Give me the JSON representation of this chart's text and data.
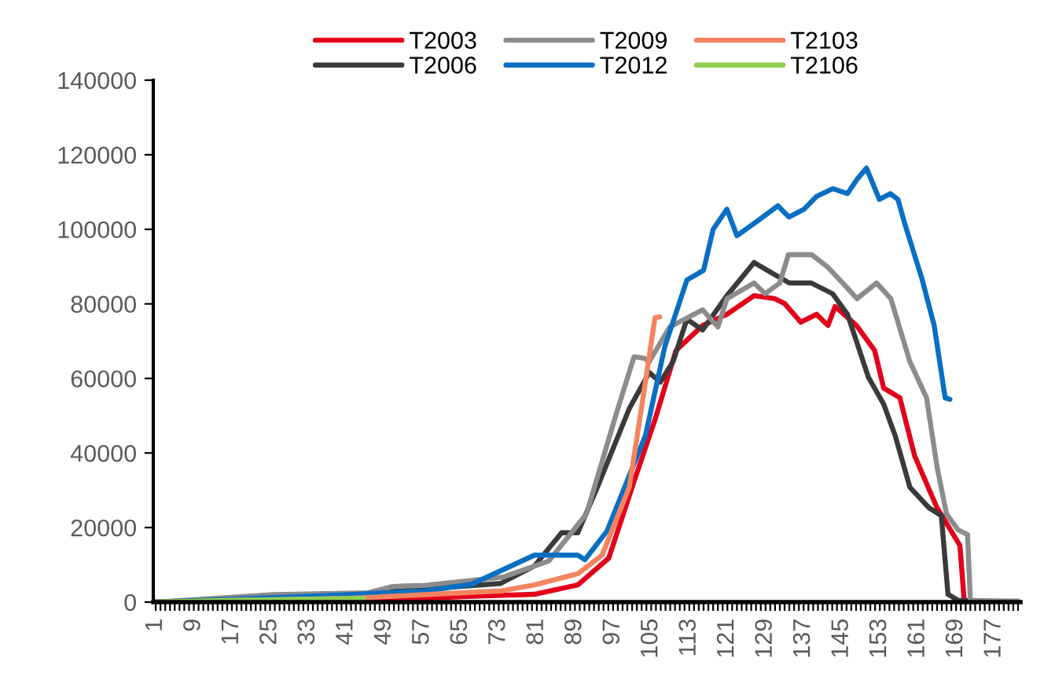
{
  "chart_data": {
    "type": "line",
    "xlim": [
      0.5,
      182.5
    ],
    "xticks": [
      1,
      9,
      17,
      25,
      33,
      41,
      49,
      57,
      65,
      73,
      81,
      89,
      97,
      105,
      113,
      121,
      129,
      137,
      145,
      153,
      161,
      169,
      177
    ],
    "ylim": [
      0,
      140000
    ],
    "yticks": [
      0,
      20000,
      40000,
      60000,
      80000,
      100000,
      120000,
      140000
    ],
    "grid": false,
    "legend": "top",
    "marker": "none",
    "line_style": "solid",
    "series": [
      {
        "name": "T2003",
        "color": "#e3001b",
        "x": [
          1,
          25.7,
          50,
          66.3,
          80.5,
          89.6,
          96.1,
          101.3,
          105.8,
          110.2,
          115.8,
          120.9,
          126.6,
          130.9,
          133,
          136.4,
          139.7,
          142.1,
          143.6,
          148.1,
          151.9,
          153.8,
          157.2,
          160.3,
          165,
          169.8,
          170.7,
          182
        ],
        "values": [
          0,
          300,
          600,
          1500,
          2100,
          4600,
          11800,
          32000,
          48900,
          67500,
          74200,
          77200,
          82200,
          81400,
          80100,
          75100,
          77200,
          74200,
          79300,
          74200,
          67500,
          57400,
          54800,
          39200,
          25300,
          15200,
          400,
          0
        ]
      },
      {
        "name": "T2006",
        "color": "#3a3a3a",
        "x": [
          1,
          25.7,
          41.9,
          57.6,
          73.4,
          80.5,
          86.2,
          89.6,
          93.7,
          100.4,
          104.6,
          106.9,
          109.6,
          112.5,
          115.8,
          120.9,
          126.6,
          129.9,
          134,
          138.6,
          143.1,
          146.2,
          150.6,
          153.8,
          156.2,
          159.3,
          163.3,
          165.9,
          167.3,
          169.4,
          182
        ],
        "values": [
          0,
          1500,
          2000,
          3500,
          5000,
          9700,
          18600,
          18600,
          30800,
          51900,
          61600,
          59000,
          64500,
          75900,
          73000,
          82200,
          91100,
          88600,
          85600,
          85600,
          82700,
          77200,
          60300,
          53100,
          44700,
          30800,
          25300,
          23200,
          2100,
          500,
          0
        ]
      },
      {
        "name": "T2009",
        "color": "#8c8c8c",
        "x": [
          1,
          25.7,
          45.6,
          50.8,
          57.6,
          73.9,
          83.5,
          91.4,
          97.7,
          101.4,
          103.6,
          104.6,
          108.9,
          115.8,
          119,
          120.9,
          126.6,
          128.9,
          132,
          133.8,
          138.7,
          142.1,
          145.2,
          148.2,
          152.3,
          155.3,
          159.3,
          162.8,
          165,
          167,
          169.4,
          171.4,
          172,
          182
        ],
        "values": [
          0,
          2000,
          2500,
          4200,
          4500,
          6700,
          11000,
          23600,
          50600,
          65800,
          65400,
          64500,
          73800,
          78400,
          73800,
          81400,
          85600,
          82700,
          85600,
          93200,
          93200,
          89800,
          85600,
          81400,
          85600,
          81400,
          64500,
          54800,
          36300,
          23600,
          19400,
          18100,
          400,
          300
        ]
      },
      {
        "name": "T2012",
        "color": "#0a6fc2",
        "x": [
          1,
          41.9,
          57.6,
          67.3,
          80.5,
          89.6,
          91.1,
          95.7,
          103.8,
          107.9,
          112.5,
          116,
          118,
          120.9,
          123,
          127.6,
          131.6,
          133.9,
          137.1,
          139.7,
          143.1,
          146.2,
          148.2,
          150.2,
          152.9,
          155.2,
          156.8,
          158.3,
          161.8,
          164.4,
          166.7,
          167.7
        ],
        "values": [
          0,
          2000,
          3000,
          4800,
          12600,
          12600,
          11400,
          19000,
          44700,
          68700,
          86400,
          89000,
          100000,
          105400,
          98300,
          102500,
          106300,
          103300,
          105400,
          108800,
          110900,
          109600,
          113400,
          116400,
          108000,
          109600,
          108000,
          101200,
          86900,
          74200,
          54800,
          54400
        ]
      },
      {
        "name": "T2103",
        "color": "#f4845f",
        "x": [
          1,
          41.9,
          57.6,
          73.4,
          80.5,
          89.6,
          94.7,
          100.4,
          103.6,
          105.8,
          106.8
        ],
        "values": [
          0,
          1000,
          2000,
          3000,
          4600,
          7600,
          12600,
          30800,
          57400,
          76300,
          76500
        ]
      },
      {
        "name": "T2106",
        "color": "#8fce4f",
        "x": [
          1,
          17.6,
          44.6
        ],
        "values": [
          0,
          500,
          1000
        ]
      }
    ]
  }
}
